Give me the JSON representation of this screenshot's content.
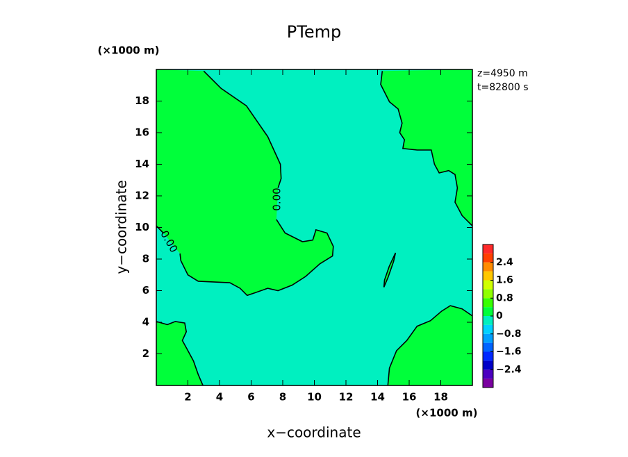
{
  "chart_data": {
    "type": "contour",
    "title": "PTemp",
    "x_label": "x−coordinate",
    "y_label": "y−coordinate",
    "x_unit": "(×1000 m)",
    "y_unit": "(×1000 m)",
    "annotations": [
      "z=4950 m",
      "t=82800 s"
    ],
    "xlim": [
      0,
      20
    ],
    "ylim": [
      0,
      20
    ],
    "xticks": [
      2,
      4,
      6,
      8,
      10,
      12,
      14,
      16,
      18
    ],
    "yticks": [
      2,
      4,
      6,
      8,
      10,
      12,
      14,
      16,
      18
    ],
    "contours": [
      {
        "level": 0,
        "label": "0.00",
        "x": [
          3.0,
          4.1,
          5.7,
          7.05,
          7.85,
          7.9,
          7.7,
          null,
          7.6,
          8.15,
          9.25,
          9.9,
          10.1,
          10.8,
          11.2,
          11.15,
          10.35,
          9.45,
          8.6,
          7.7,
          7.05,
          6.2,
          5.75,
          5.3,
          4.65,
          2.65,
          2.0,
          1.55,
          1.5,
          null,
          0.45,
          0
        ],
        "y": [
          19.9,
          18.8,
          17.7,
          15.75,
          14.0,
          13.1,
          12.5,
          null,
          10.5,
          9.65,
          9.1,
          9.2,
          9.85,
          9.65,
          8.8,
          8.2,
          7.7,
          6.9,
          6.35,
          6.0,
          6.15,
          5.85,
          5.7,
          6.15,
          6.5,
          6.6,
          7.0,
          7.9,
          8.35,
          null,
          9.65,
          10.1
        ]
      },
      {
        "level": 0,
        "x": [
          14.3,
          14.2,
          14.75,
          15.3,
          15.55,
          15.4,
          15.7,
          15.6,
          16.5,
          17.4,
          17.6,
          17.9,
          18.5,
          18.9,
          19.05,
          18.9,
          19.35,
          20
        ],
        "y": [
          19.9,
          19.05,
          17.95,
          17.5,
          16.6,
          16.0,
          15.55,
          15.0,
          14.9,
          14.9,
          14.0,
          13.45,
          13.6,
          13.35,
          12.5,
          11.6,
          10.75,
          10.1
        ]
      },
      {
        "level": 0,
        "x": [
          14.65,
          14.75,
          15.2,
          15.85,
          16.5,
          17.35,
          18.05,
          18.6,
          19.35,
          20
        ],
        "y": [
          0,
          1.1,
          2.2,
          2.85,
          3.75,
          4.1,
          4.7,
          5.05,
          4.85,
          4.4
        ]
      },
      {
        "level": 0,
        "x": [
          0,
          0.7,
          1.2,
          1.8,
          1.9,
          1.65,
          2.0,
          2.35,
          2.65,
          2.95
        ],
        "y": [
          4.05,
          3.85,
          4.05,
          3.95,
          3.4,
          2.85,
          2.2,
          1.55,
          0.7,
          0
        ]
      },
      {
        "level": 0,
        "x": [
          15.14,
          15.01,
          14.66,
          14.4,
          14.44,
          14.74,
          15.14
        ],
        "y": [
          8.4,
          7.84,
          6.83,
          6.22,
          6.67,
          7.54,
          8.4
        ]
      }
    ],
    "clevels": [
      -3.2,
      -2.8,
      -2.4,
      -2.0,
      -1.6,
      -1.2,
      -0.8,
      -0.4,
      0,
      0.4,
      0.8,
      1.2,
      1.6,
      2.0,
      2.4,
      2.8,
      3.2
    ],
    "ccolors": [
      "#7a00a0",
      "#4b00c0",
      "#0000c8",
      "#0028ff",
      "#0064ff",
      "#00a0ff",
      "#00d2ff",
      "#00f0c0",
      "#00ff3a",
      "#38ff00",
      "#90ff00",
      "#d0ff00",
      "#ffc800",
      "#ff8c00",
      "#ff4000",
      "#ff2a2a",
      "#ff9090"
    ],
    "cticks": [
      {
        "value": -2.4,
        "label": "−2.4"
      },
      {
        "value": -1.6,
        "label": "−1.6"
      },
      {
        "value": -0.8,
        "label": "−0.8"
      },
      0,
      0.8,
      1.6,
      2.4
    ]
  }
}
